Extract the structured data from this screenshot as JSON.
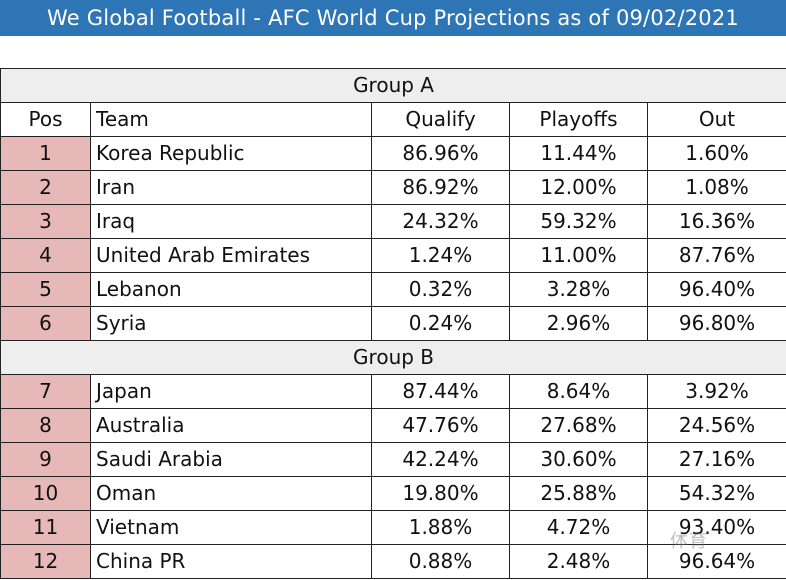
{
  "title": "We Global Football - AFC World Cup Projections as of 09/02/2021",
  "colors": {
    "title_bg": "#2e75b6",
    "group_bg": "#eeeeee",
    "pos_bg": "#e6b8b7"
  },
  "headers": {
    "pos": "Pos",
    "team": "Team",
    "qualify": "Qualify",
    "playoffs": "Playoffs",
    "out": "Out"
  },
  "groups": [
    {
      "name": "Group A",
      "rows": [
        {
          "pos": "1",
          "team": "Korea Republic",
          "qualify": "86.96%",
          "playoffs": "11.44%",
          "out": "1.60%"
        },
        {
          "pos": "2",
          "team": "Iran",
          "qualify": "86.92%",
          "playoffs": "12.00%",
          "out": "1.08%"
        },
        {
          "pos": "3",
          "team": "Iraq",
          "qualify": "24.32%",
          "playoffs": "59.32%",
          "out": "16.36%"
        },
        {
          "pos": "4",
          "team": "United Arab Emirates",
          "qualify": "1.24%",
          "playoffs": "11.00%",
          "out": "87.76%"
        },
        {
          "pos": "5",
          "team": "Lebanon",
          "qualify": "0.32%",
          "playoffs": "3.28%",
          "out": "96.40%"
        },
        {
          "pos": "6",
          "team": "Syria",
          "qualify": "0.24%",
          "playoffs": "2.96%",
          "out": "96.80%"
        }
      ]
    },
    {
      "name": "Group B",
      "rows": [
        {
          "pos": "7",
          "team": "Japan",
          "qualify": "87.44%",
          "playoffs": "8.64%",
          "out": "3.92%"
        },
        {
          "pos": "8",
          "team": "Australia",
          "qualify": "47.76%",
          "playoffs": "27.68%",
          "out": "24.56%"
        },
        {
          "pos": "9",
          "team": "Saudi Arabia",
          "qualify": "42.24%",
          "playoffs": "30.60%",
          "out": "27.16%"
        },
        {
          "pos": "10",
          "team": "Oman",
          "qualify": "19.80%",
          "playoffs": "25.88%",
          "out": "54.32%"
        },
        {
          "pos": "11",
          "team": "Vietnam",
          "qualify": "1.88%",
          "playoffs": "4.72%",
          "out": "93.40%"
        },
        {
          "pos": "12",
          "team": "China PR",
          "qualify": "0.88%",
          "playoffs": "2.48%",
          "out": "96.64%"
        }
      ]
    }
  ],
  "watermark": "体育"
}
